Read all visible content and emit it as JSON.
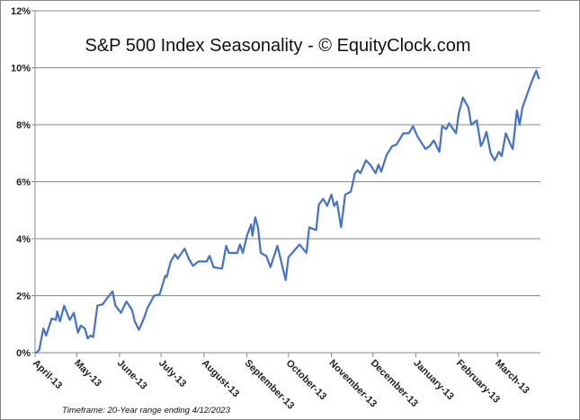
{
  "chart_data": {
    "type": "line",
    "title": "S&P 500 Index Seasonality - © EquityClock.com",
    "footnote": "Timeframe:   20-Year  range ending  4/12/2023",
    "xlabel": "",
    "ylabel": "",
    "xlim": [
      0,
      365
    ],
    "ylim": [
      0,
      12
    ],
    "grid": true,
    "y_ticks": [
      {
        "value": 0,
        "label": "0%"
      },
      {
        "value": 2,
        "label": "2%"
      },
      {
        "value": 4,
        "label": "4%"
      },
      {
        "value": 6,
        "label": "6%"
      },
      {
        "value": 8,
        "label": "8%"
      },
      {
        "value": 10,
        "label": "10%"
      },
      {
        "value": 12,
        "label": "12%"
      }
    ],
    "x_ticks": [
      {
        "value": 0,
        "label": "April-13"
      },
      {
        "value": 30,
        "label": "May-13"
      },
      {
        "value": 61,
        "label": "June-13"
      },
      {
        "value": 91,
        "label": "July-13"
      },
      {
        "value": 122,
        "label": "August-13"
      },
      {
        "value": 153,
        "label": "September-13"
      },
      {
        "value": 183,
        "label": "October-13"
      },
      {
        "value": 214,
        "label": "November-13"
      },
      {
        "value": 244,
        "label": "December-13"
      },
      {
        "value": 275,
        "label": "January-13"
      },
      {
        "value": 306,
        "label": "February-13"
      },
      {
        "value": 334,
        "label": "March-13"
      }
    ],
    "series": [
      {
        "name": "S&P 500 Seasonality",
        "color": "#4472C4",
        "x": [
          0,
          1,
          3,
          5,
          6,
          8,
          12,
          15,
          16,
          18,
          21,
          25,
          28,
          31,
          33,
          36,
          38,
          40,
          42,
          45,
          49,
          51,
          56,
          58,
          62,
          66,
          70,
          72,
          75,
          79,
          81,
          86,
          90,
          94,
          95,
          98,
          101,
          103,
          108,
          111,
          114,
          118,
          124,
          126,
          129,
          135,
          138,
          140,
          146,
          148,
          150,
          153,
          156,
          157,
          159,
          161,
          163,
          167,
          170,
          172,
          175,
          179,
          181,
          183,
          191,
          196,
          198,
          203,
          205,
          208,
          211,
          214,
          216,
          218,
          221,
          224,
          228,
          230,
          231,
          233,
          235,
          239,
          242,
          246,
          248,
          250,
          254,
          258,
          261,
          266,
          270,
          273,
          276,
          282,
          285,
          288,
          292,
          294,
          297,
          299,
          304,
          306,
          309,
          313,
          315,
          319,
          322,
          324,
          326,
          329,
          332,
          335,
          337,
          340,
          343,
          345,
          348,
          350,
          352,
          356,
          359,
          362,
          364
        ],
        "y": [
          0,
          0,
          0.1,
          0.6,
          0.85,
          0.6,
          1.2,
          1.15,
          1.45,
          1.1,
          1.65,
          1.15,
          1.4,
          0.7,
          0.95,
          0.85,
          0.5,
          0.6,
          0.55,
          1.65,
          1.7,
          1.85,
          2.15,
          1.65,
          1.4,
          1.8,
          1.5,
          1.1,
          0.8,
          1.25,
          1.55,
          2.0,
          2.05,
          2.7,
          2.65,
          3.2,
          3.45,
          3.3,
          3.65,
          3.3,
          3.05,
          3.2,
          3.2,
          3.4,
          3.0,
          2.95,
          3.75,
          3.5,
          3.5,
          3.8,
          3.5,
          4.1,
          4.5,
          4.1,
          4.75,
          4.4,
          3.5,
          3.4,
          3.0,
          3.3,
          3.75,
          2.95,
          2.55,
          3.35,
          3.8,
          3.5,
          4.4,
          4.3,
          5.2,
          5.4,
          5.15,
          5.55,
          5.15,
          5.3,
          4.4,
          5.55,
          5.65,
          6.05,
          6.3,
          6.4,
          6.3,
          6.75,
          6.6,
          6.3,
          6.6,
          6.35,
          6.95,
          7.25,
          7.3,
          7.7,
          7.7,
          7.95,
          7.6,
          7.15,
          7.25,
          7.45,
          7.05,
          7.95,
          7.85,
          8.05,
          7.7,
          8.4,
          8.95,
          8.6,
          8.0,
          8.15,
          7.25,
          7.45,
          7.75,
          7.0,
          6.75,
          7.05,
          6.9,
          7.7,
          7.35,
          7.15,
          8.5,
          8.0,
          8.6,
          9.15,
          9.55,
          9.9,
          9.6
        ]
      }
    ]
  }
}
